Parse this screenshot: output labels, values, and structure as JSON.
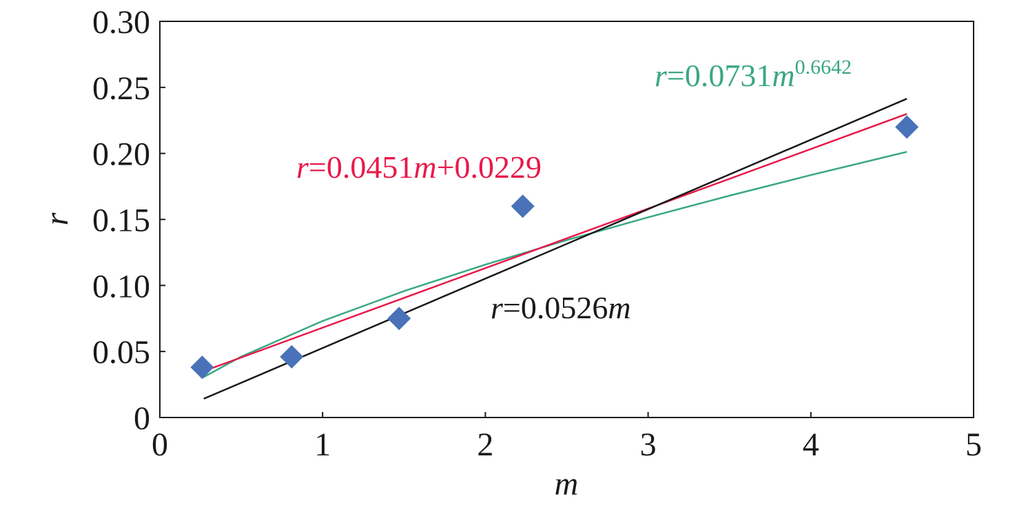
{
  "chart_data": {
    "type": "scatter",
    "xlabel": "m",
    "ylabel": "r",
    "xlim": [
      0,
      5
    ],
    "xticks": [
      0,
      1,
      2,
      3,
      4,
      5
    ],
    "ylim": [
      0,
      0.3
    ],
    "yticks": [
      0,
      {
        "value": 0.05,
        "label": "0.05"
      },
      {
        "value": 0.1,
        "label": "0.10"
      },
      {
        "value": 0.15,
        "label": "0.15"
      },
      {
        "value": 0.2,
        "label": "0.20"
      },
      {
        "value": 0.25,
        "label": "0.25"
      },
      {
        "value": 0.3,
        "label": "0.30"
      }
    ],
    "points": {
      "color": "#4a72b8",
      "x": [
        0.26,
        0.81,
        1.47,
        2.23,
        4.59
      ],
      "values": [
        0.038,
        0.046,
        0.075,
        0.16,
        0.22
      ]
    },
    "fits": [
      {
        "color": "#3aa882",
        "equation": [
          "r",
          "=0.0731",
          "m",
          "0.6642"
        ],
        "x": [
          0.26,
          0.5,
          1,
          1.5,
          2,
          2.5,
          3,
          3.5,
          4,
          4.59
        ],
        "values": [
          0.03,
          0.0461,
          0.0731,
          0.0957,
          0.1158,
          0.1343,
          0.1516,
          0.168,
          0.1836,
          0.2012
        ]
      },
      {
        "color": "#e8194a",
        "equation": [
          "r",
          "=0.0451",
          "m",
          "+0.0229"
        ],
        "x": [
          0.27,
          4.59
        ],
        "values": [
          0.0351,
          0.2299
        ]
      },
      {
        "color": "#1a1a1a",
        "equation": [
          "r",
          "=0.0526",
          "m"
        ],
        "x": [
          0.27,
          4.59
        ],
        "values": [
          0.0142,
          0.2414
        ]
      }
    ]
  }
}
